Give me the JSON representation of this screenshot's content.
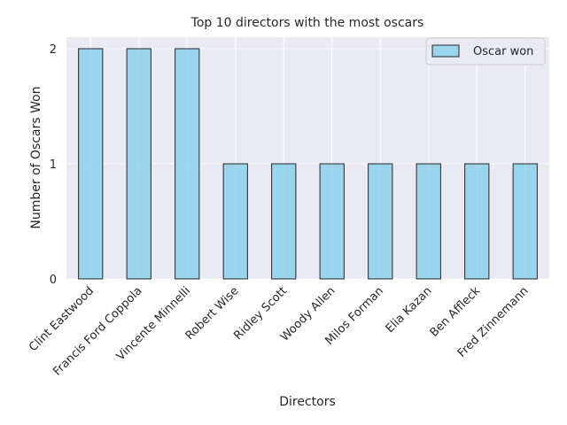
{
  "chart_data": {
    "type": "bar",
    "title": "Top 10 directors with the most oscars",
    "xlabel": "Directors",
    "ylabel": "Number of Oscars Won",
    "categories": [
      "Clint Eastwood",
      "Francis Ford Coppola",
      "Vincente Minnelli",
      "Robert Wise",
      "Ridley Scott",
      "Woody Allen",
      "Milos Forman",
      "Elia Kazan",
      "Ben Affleck",
      "Fred Zinnemann"
    ],
    "series": [
      {
        "name": "Oscar won",
        "values": [
          2,
          2,
          2,
          1,
          1,
          1,
          1,
          1,
          1,
          1
        ]
      }
    ],
    "ylim": [
      0,
      2.1
    ],
    "yticks": [
      0,
      1,
      2
    ],
    "grid": true,
    "legend_position": "top-right",
    "colors": {
      "bar": "#87ceeb",
      "edge": "#262626",
      "background": "#eaeaf2",
      "grid": "#ffffff"
    }
  }
}
